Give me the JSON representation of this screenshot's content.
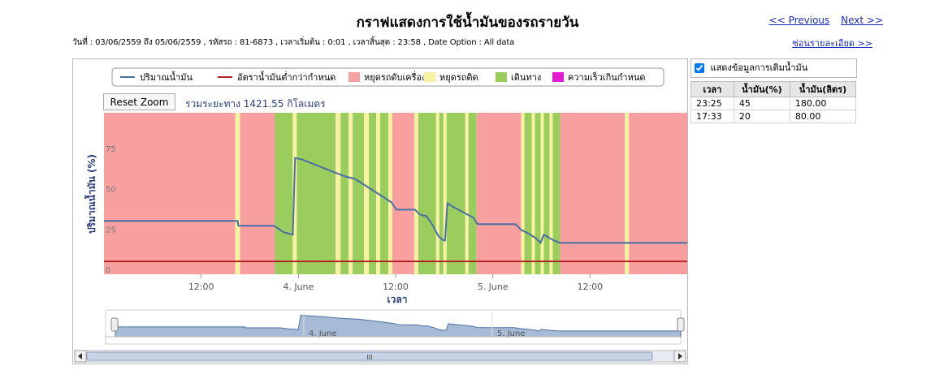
{
  "page": {
    "title": "กราฟแสดงการใช้น้ำมันของรถรายวัน",
    "nav": {
      "previous_label": "<< Previous",
      "next_label": "Next >>"
    },
    "info_line": "วันที่ : 03/06/2559 ถึง 05/06/2559 , รหัสรถ : 81-6873 , เวลาเริ่มต้น : 0:01 , เวลาสิ้นสุด : 23:58 , Date Option : All data",
    "toggle_details_label": "ซ่อนรายละเอียด >>"
  },
  "chart_controls": {
    "reset_zoom_label": "Reset Zoom",
    "total_distance": "รวมระยะทาง 1421.55 กิโลเมตร"
  },
  "colors": {
    "fuel_line": "#4a6fa5",
    "threshold_line": "#b32424",
    "stopped_engine_off": "#f8a0a0",
    "stopped_idle": "#f7f2a2",
    "driving": "#9bcd5e",
    "overspeed": "#e21fd0"
  },
  "chart_data": {
    "type": "line",
    "xlabel": "เวลา",
    "ylabel": "ปริมาณน้ำมัน (%)",
    "ylim": [
      0,
      100
    ],
    "y_ticks": [
      0,
      25,
      50,
      75
    ],
    "x_range_hours": [
      0,
      72
    ],
    "x_ticks": [
      {
        "h": 12,
        "label": "12:00"
      },
      {
        "h": 24,
        "label": "4. June"
      },
      {
        "h": 36,
        "label": "12:00"
      },
      {
        "h": 48,
        "label": "5. June"
      },
      {
        "h": 60,
        "label": "12:00"
      }
    ],
    "legend": [
      {
        "label": "ปริมาณน้ำมัน",
        "kind": "line",
        "color": "#4a6fa5"
      },
      {
        "label": "อัตราน้ำมันต่ำกว่ากำหนด",
        "kind": "line",
        "color": "#b32424"
      },
      {
        "label": "หยุดรถดับเครื่อง",
        "kind": "box",
        "color": "#f8a0a0"
      },
      {
        "label": "หยุดรถติด",
        "kind": "box",
        "color": "#f7f2a2"
      },
      {
        "label": "เดินทาง",
        "kind": "box",
        "color": "#9bcd5e"
      },
      {
        "label": "ความเร็วเกินกำหนด",
        "kind": "box",
        "color": "#e21fd0"
      }
    ],
    "threshold_value": 8,
    "series": [
      {
        "name": "ปริมาณน้ำมัน",
        "points": [
          [
            0,
            33
          ],
          [
            16.5,
            33
          ],
          [
            16.6,
            30
          ],
          [
            21,
            30
          ],
          [
            22.2,
            26
          ],
          [
            23.3,
            24.5
          ],
          [
            23.6,
            72
          ],
          [
            24.5,
            71
          ],
          [
            26,
            68
          ],
          [
            28,
            64
          ],
          [
            29.5,
            61
          ],
          [
            31,
            59
          ],
          [
            33.5,
            51
          ],
          [
            35.5,
            44.5
          ],
          [
            36.1,
            40
          ],
          [
            38.4,
            40
          ],
          [
            39,
            37
          ],
          [
            39.8,
            36
          ],
          [
            40.5,
            31
          ],
          [
            41.3,
            23.5
          ],
          [
            41.9,
            21
          ],
          [
            42.1,
            21
          ],
          [
            42.4,
            44
          ],
          [
            43,
            42
          ],
          [
            44.5,
            38
          ],
          [
            45.6,
            35
          ],
          [
            46.1,
            31
          ],
          [
            50.8,
            31
          ],
          [
            51.5,
            27.5
          ],
          [
            52.5,
            25
          ],
          [
            53.4,
            22
          ],
          [
            53.9,
            19.5
          ],
          [
            54.3,
            24.5
          ],
          [
            55.5,
            21
          ],
          [
            56.3,
            19.5
          ],
          [
            72,
            19.5
          ]
        ]
      }
    ],
    "segments": [
      {
        "start": 0,
        "end": 16.2,
        "type": "stopped_engine_off"
      },
      {
        "start": 16.2,
        "end": 16.8,
        "type": "stopped_idle"
      },
      {
        "start": 16.8,
        "end": 21.1,
        "type": "stopped_engine_off"
      },
      {
        "start": 21.1,
        "end": 23.3,
        "type": "driving"
      },
      {
        "start": 23.3,
        "end": 23.8,
        "type": "stopped_idle"
      },
      {
        "start": 23.8,
        "end": 28.6,
        "type": "driving"
      },
      {
        "start": 28.6,
        "end": 29.2,
        "type": "stopped_idle"
      },
      {
        "start": 29.2,
        "end": 30.2,
        "type": "driving"
      },
      {
        "start": 30.2,
        "end": 30.7,
        "type": "stopped_idle"
      },
      {
        "start": 30.7,
        "end": 32.1,
        "type": "driving"
      },
      {
        "start": 32.1,
        "end": 32.7,
        "type": "stopped_idle"
      },
      {
        "start": 32.7,
        "end": 33.6,
        "type": "driving"
      },
      {
        "start": 33.6,
        "end": 34.1,
        "type": "stopped_idle"
      },
      {
        "start": 34.1,
        "end": 35.1,
        "type": "driving"
      },
      {
        "start": 35.1,
        "end": 35.6,
        "type": "stopped_idle"
      },
      {
        "start": 35.6,
        "end": 38.3,
        "type": "stopped_engine_off"
      },
      {
        "start": 38.3,
        "end": 38.8,
        "type": "stopped_idle"
      },
      {
        "start": 38.8,
        "end": 41.0,
        "type": "driving"
      },
      {
        "start": 41.0,
        "end": 41.4,
        "type": "stopped_idle"
      },
      {
        "start": 41.4,
        "end": 41.9,
        "type": "driving"
      },
      {
        "start": 41.9,
        "end": 42.3,
        "type": "stopped_idle"
      },
      {
        "start": 42.3,
        "end": 44.6,
        "type": "driving"
      },
      {
        "start": 44.6,
        "end": 45.0,
        "type": "stopped_idle"
      },
      {
        "start": 45.0,
        "end": 46.0,
        "type": "driving"
      },
      {
        "start": 46.0,
        "end": 51.5,
        "type": "stopped_engine_off"
      },
      {
        "start": 51.5,
        "end": 51.9,
        "type": "stopped_idle"
      },
      {
        "start": 51.9,
        "end": 52.8,
        "type": "driving"
      },
      {
        "start": 52.8,
        "end": 53.2,
        "type": "stopped_idle"
      },
      {
        "start": 53.2,
        "end": 53.9,
        "type": "driving"
      },
      {
        "start": 53.9,
        "end": 54.3,
        "type": "stopped_idle"
      },
      {
        "start": 54.3,
        "end": 55.0,
        "type": "driving"
      },
      {
        "start": 55.0,
        "end": 55.4,
        "type": "stopped_idle"
      },
      {
        "start": 55.4,
        "end": 56.3,
        "type": "driving"
      },
      {
        "start": 56.3,
        "end": 64.3,
        "type": "stopped_engine_off"
      },
      {
        "start": 64.3,
        "end": 64.8,
        "type": "stopped_idle"
      },
      {
        "start": 64.8,
        "end": 72,
        "type": "stopped_engine_off"
      }
    ],
    "navigator": {
      "x_labels": [
        {
          "h": 24,
          "label": "4. June"
        },
        {
          "h": 48,
          "label": "5. June"
        }
      ],
      "scroll_label": "III"
    }
  },
  "refuel_panel": {
    "checkbox_label": "แสดงข้อมูลการเติมน้ำมัน",
    "checked": true,
    "columns": [
      "เวลา",
      "น้ำมัน(%)",
      "น้ำมัน(ลิตร)"
    ],
    "rows": [
      [
        "23:25",
        "45",
        "180.00"
      ],
      [
        "17:33",
        "20",
        "80.00"
      ]
    ]
  }
}
